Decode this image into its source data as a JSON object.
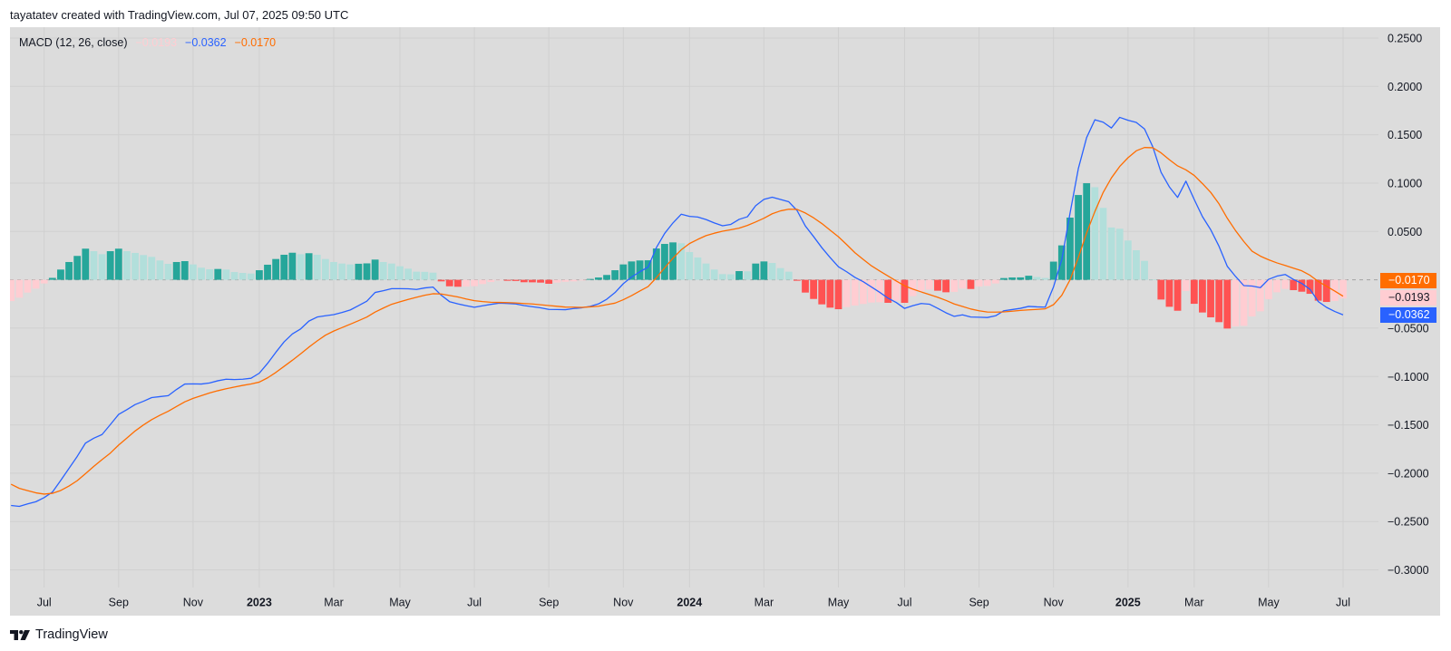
{
  "header": {
    "attribution": "tayatatev created with TradingView.com, Jul 07, 2025 09:50 UTC"
  },
  "legend": {
    "indicator_label": "MACD (12, 26, close)",
    "histogram_value": "−0.0193",
    "macd_value": "−0.0362",
    "signal_value": "−0.0170"
  },
  "price_axis": {
    "current_signal": "−0.0170",
    "current_histogram": "−0.0193",
    "current_macd": "−0.0362"
  },
  "footer": {
    "brand": "TradingView",
    "logo_icon": "tradingview-logo-icon"
  },
  "colors": {
    "macd": "#2962ff",
    "signal": "#ff6d00",
    "hist_pos_rising": "#26a69a",
    "hist_pos_falling": "#b2dfdb",
    "hist_neg_falling": "#ff5252",
    "hist_neg_rising": "#ffcdd2",
    "panel_bg": "#dcdcdc",
    "grid": "#d0d0d0",
    "zero_line": "#a3a3a3"
  },
  "chart_data": {
    "type": "line",
    "title": "MACD (12, 26, close)",
    "xlabel": "",
    "ylabel": "",
    "ylim": [
      -0.3,
      0.25
    ],
    "grid": true,
    "legend_position": "top-left",
    "y_ticks": [
      {
        "value": 0.25,
        "label": "0.2500"
      },
      {
        "value": 0.2,
        "label": "0.2000"
      },
      {
        "value": 0.15,
        "label": "0.1500"
      },
      {
        "value": 0.1,
        "label": "0.1000"
      },
      {
        "value": 0.05,
        "label": "0.0500"
      },
      {
        "value": -0.05,
        "label": "−0.0500"
      },
      {
        "value": -0.1,
        "label": "−0.1000"
      },
      {
        "value": -0.15,
        "label": "−0.1500"
      },
      {
        "value": -0.2,
        "label": "−0.2000"
      },
      {
        "value": -0.25,
        "label": "−0.2500"
      },
      {
        "value": -0.3,
        "label": "−0.3000"
      }
    ],
    "x_ticks": [
      {
        "index": 4,
        "label": "Jul"
      },
      {
        "index": 13,
        "label": "Sep"
      },
      {
        "index": 22,
        "label": "Nov"
      },
      {
        "index": 30,
        "label": "2023",
        "bold": true
      },
      {
        "index": 39,
        "label": "Mar"
      },
      {
        "index": 47,
        "label": "May"
      },
      {
        "index": 56,
        "label": "Jul"
      },
      {
        "index": 65,
        "label": "Sep"
      },
      {
        "index": 74,
        "label": "Nov"
      },
      {
        "index": 82,
        "label": "2024",
        "bold": true
      },
      {
        "index": 91,
        "label": "Mar"
      },
      {
        "index": 100,
        "label": "May"
      },
      {
        "index": 108,
        "label": "Jul"
      },
      {
        "index": 117,
        "label": "Sep"
      },
      {
        "index": 126,
        "label": "Nov"
      },
      {
        "index": 135,
        "label": "2025",
        "bold": true
      },
      {
        "index": 143,
        "label": "Mar"
      },
      {
        "index": 152,
        "label": "May"
      },
      {
        "index": 161,
        "label": "Jul"
      }
    ],
    "series": [
      {
        "name": "Histogram",
        "type": "bar",
        "values": [
          -0.022,
          -0.0185,
          -0.0132,
          -0.0091,
          -0.0038,
          0.002,
          0.0106,
          0.0184,
          0.0247,
          0.0322,
          0.0296,
          0.0265,
          0.0296,
          0.0322,
          0.0296,
          0.0278,
          0.0256,
          0.0237,
          0.02,
          0.0165,
          0.0184,
          0.0193,
          0.0159,
          0.0125,
          0.0109,
          0.0112,
          0.0106,
          0.008,
          0.0071,
          0.0065,
          0.0099,
          0.0156,
          0.0215,
          0.0259,
          0.028,
          0.0265,
          0.0275,
          0.0259,
          0.0215,
          0.0184,
          0.0168,
          0.0159,
          0.0166,
          0.017,
          0.0209,
          0.0184,
          0.0168,
          0.014,
          0.0115,
          0.0084,
          0.0082,
          0.0074,
          -0.0016,
          -0.0067,
          -0.0072,
          -0.007,
          -0.0066,
          -0.0044,
          -0.0023,
          -0.0007,
          -0.001,
          -0.0012,
          -0.0025,
          -0.0026,
          -0.0029,
          -0.0041,
          -0.0029,
          -0.002,
          -0.0016,
          -0.0007,
          0.0009,
          0.0024,
          0.005,
          0.0099,
          0.0159,
          0.019,
          0.02,
          0.0202,
          0.0324,
          0.0371,
          0.0387,
          0.0378,
          0.0287,
          0.0231,
          0.0168,
          0.0106,
          0.0059,
          0.0057,
          0.009,
          0.0088,
          0.0168,
          0.019,
          0.0174,
          0.0121,
          0.0084,
          -0.001,
          -0.0132,
          -0.0198,
          -0.0254,
          -0.0288,
          -0.0304,
          -0.0282,
          -0.0266,
          -0.025,
          -0.0235,
          -0.0232,
          -0.0238,
          -0.0216,
          -0.0238,
          -0.0169,
          -0.0116,
          -0.0101,
          -0.0113,
          -0.0129,
          -0.0125,
          -0.0091,
          -0.0095,
          -0.0069,
          -0.0063,
          -0.0038,
          0.0018,
          0.0024,
          0.0025,
          0.0042,
          0.0029,
          0.0019,
          0.0188,
          0.0356,
          0.0643,
          0.0877,
          0.0999,
          0.0958,
          0.0744,
          0.0541,
          0.0528,
          0.0406,
          0.0306,
          0.0196,
          0.0004,
          -0.0204,
          -0.0279,
          -0.032,
          -0.0116,
          -0.0248,
          -0.0338,
          -0.0388,
          -0.0438,
          -0.0504,
          -0.0482,
          -0.0476,
          -0.0379,
          -0.0326,
          -0.0201,
          -0.0129,
          -0.0094,
          -0.0107,
          -0.0123,
          -0.0145,
          -0.0216,
          -0.0229,
          -0.0219,
          -0.0193
        ]
      },
      {
        "name": "MACD",
        "type": "line",
        "color": "#2962ff",
        "values": [
          -0.2334,
          -0.2343,
          -0.2318,
          -0.2295,
          -0.2252,
          -0.2195,
          -0.2075,
          -0.1951,
          -0.1826,
          -0.1688,
          -0.1638,
          -0.16,
          -0.1497,
          -0.1392,
          -0.1343,
          -0.129,
          -0.1256,
          -0.1218,
          -0.1208,
          -0.1198,
          -0.1134,
          -0.1078,
          -0.1076,
          -0.1078,
          -0.1067,
          -0.1044,
          -0.1028,
          -0.1032,
          -0.1028,
          -0.1018,
          -0.0966,
          -0.0865,
          -0.075,
          -0.0642,
          -0.056,
          -0.0508,
          -0.0427,
          -0.0385,
          -0.0372,
          -0.036,
          -0.0338,
          -0.0312,
          -0.0267,
          -0.0221,
          -0.0131,
          -0.0113,
          -0.0092,
          -0.0092,
          -0.0093,
          -0.01,
          -0.0084,
          -0.0075,
          -0.016,
          -0.0226,
          -0.0249,
          -0.0267,
          -0.0284,
          -0.0269,
          -0.0254,
          -0.0241,
          -0.0245,
          -0.025,
          -0.0266,
          -0.0278,
          -0.029,
          -0.0306,
          -0.0307,
          -0.0309,
          -0.0297,
          -0.0289,
          -0.0275,
          -0.0249,
          -0.0201,
          -0.0132,
          -0.004,
          0.0029,
          0.0083,
          0.0132,
          0.0333,
          0.048,
          0.0588,
          0.0678,
          0.0656,
          0.0649,
          0.0623,
          0.0588,
          0.0559,
          0.0573,
          0.0625,
          0.0652,
          0.0766,
          0.0832,
          0.0854,
          0.0831,
          0.0807,
          0.0717,
          0.0557,
          0.0447,
          0.0332,
          0.023,
          0.0135,
          0.0083,
          0.0025,
          -0.002,
          -0.0075,
          -0.013,
          -0.019,
          -0.0235,
          -0.0296,
          -0.0268,
          -0.0245,
          -0.0252,
          -0.0295,
          -0.0341,
          -0.0378,
          -0.0362,
          -0.0385,
          -0.0387,
          -0.039,
          -0.0372,
          -0.032,
          -0.0308,
          -0.0295,
          -0.0275,
          -0.028,
          -0.0283,
          -0.0073,
          0.021,
          0.069,
          0.115,
          0.147,
          0.1655,
          0.163,
          0.157,
          0.168,
          0.165,
          0.1628,
          0.156,
          0.1375,
          0.1111,
          0.0961,
          0.0852,
          0.102,
          0.0832,
          0.0654,
          0.0518,
          0.0347,
          0.014,
          0.0035,
          -0.006,
          -0.0065,
          -0.0081,
          0.0005,
          0.0038,
          0.0055,
          0.0004,
          -0.0037,
          -0.0098,
          -0.0225,
          -0.0285,
          -0.0328,
          -0.0362
        ]
      },
      {
        "name": "Signal",
        "type": "line",
        "color": "#ff6d00",
        "values": [
          -0.2114,
          -0.2157,
          -0.218,
          -0.2203,
          -0.2216,
          -0.2208,
          -0.2179,
          -0.2133,
          -0.2077,
          -0.2004,
          -0.1929,
          -0.1859,
          -0.1792,
          -0.1709,
          -0.1636,
          -0.1563,
          -0.1501,
          -0.1446,
          -0.14,
          -0.1359,
          -0.131,
          -0.1262,
          -0.1226,
          -0.1198,
          -0.117,
          -0.1147,
          -0.1127,
          -0.1109,
          -0.1092,
          -0.1077,
          -0.1058,
          -0.1014,
          -0.0958,
          -0.0895,
          -0.0832,
          -0.0766,
          -0.0696,
          -0.0632,
          -0.0573,
          -0.053,
          -0.0494,
          -0.0459,
          -0.0423,
          -0.0385,
          -0.0334,
          -0.0292,
          -0.0253,
          -0.0228,
          -0.0203,
          -0.0181,
          -0.016,
          -0.0144,
          -0.0147,
          -0.0162,
          -0.0177,
          -0.0198,
          -0.0216,
          -0.0225,
          -0.0232,
          -0.0234,
          -0.0236,
          -0.0239,
          -0.0245,
          -0.025,
          -0.0258,
          -0.0266,
          -0.0274,
          -0.0282,
          -0.0283,
          -0.0285,
          -0.028,
          -0.0273,
          -0.0257,
          -0.0241,
          -0.0206,
          -0.0164,
          -0.0116,
          -0.007,
          0.0022,
          0.0124,
          0.0223,
          0.031,
          0.0375,
          0.0418,
          0.0457,
          0.0482,
          0.0503,
          0.0518,
          0.0534,
          0.0562,
          0.0598,
          0.0637,
          0.0683,
          0.0713,
          0.073,
          0.0728,
          0.0691,
          0.0641,
          0.0582,
          0.0513,
          0.0445,
          0.0364,
          0.028,
          0.0211,
          0.0144,
          0.0091,
          0.0039,
          -0.0012,
          -0.0062,
          -0.0096,
          -0.0125,
          -0.0153,
          -0.0181,
          -0.0213,
          -0.025,
          -0.0276,
          -0.0302,
          -0.032,
          -0.0333,
          -0.0334,
          -0.0332,
          -0.0325,
          -0.0317,
          -0.0311,
          -0.0306,
          -0.03,
          -0.0257,
          -0.016,
          0.0,
          0.023,
          0.0485,
          0.0706,
          0.0903,
          0.1054,
          0.1172,
          0.1262,
          0.1334,
          0.1368,
          0.1366,
          0.1313,
          0.1242,
          0.1178,
          0.1137,
          0.108,
          0.0995,
          0.0904,
          0.0786,
          0.0637,
          0.0509,
          0.0396,
          0.0296,
          0.0245,
          0.0207,
          0.0175,
          0.0149,
          0.0121,
          0.0093,
          0.0047,
          -0.0017,
          -0.0066,
          -0.0117,
          -0.017
        ]
      }
    ],
    "last_values": {
      "histogram": -0.0193,
      "macd": -0.0362,
      "signal": -0.017
    }
  }
}
